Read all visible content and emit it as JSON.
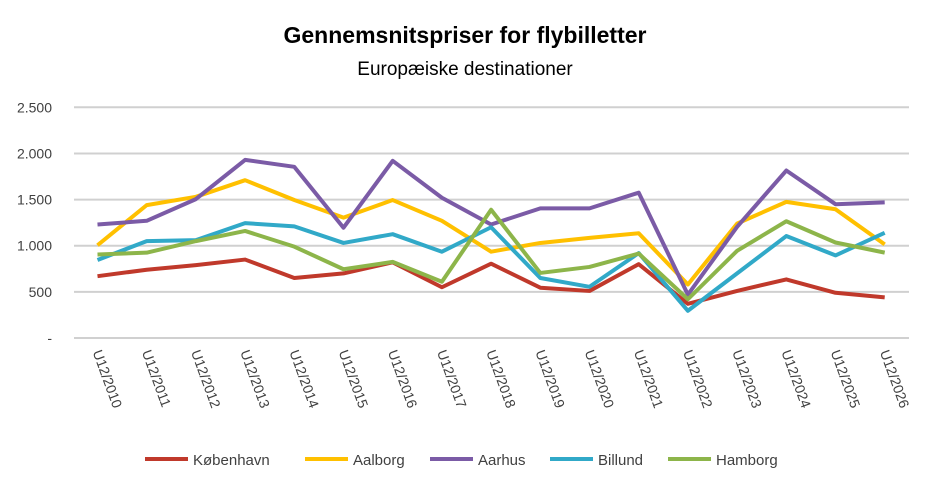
{
  "chart_data": {
    "type": "line",
    "title": "Gennemsnitspriser for flybilletter",
    "subtitle": "Europæiske destinationer",
    "xlabel": "",
    "ylabel": "",
    "ylim": [
      0,
      2500
    ],
    "y_ticks": [
      0,
      500,
      1000,
      1500,
      2000,
      2500
    ],
    "y_tick_labels": [
      "-",
      "500",
      "1.000",
      "1.500",
      "2.000",
      "2.500"
    ],
    "grid": true,
    "legend_position": "bottom",
    "categories": [
      "U12/2010",
      "U12/2011",
      "U12/2012",
      "U12/2013",
      "U12/2014",
      "U12/2015",
      "U12/2016",
      "U12/2017",
      "U12/2018",
      "U12/2019",
      "U12/2020",
      "U12/2021",
      "U12/2022",
      "U12/2023",
      "U12/2024",
      "U12/2025",
      "U12/2026"
    ],
    "series": [
      {
        "name": "København",
        "color": "#C0392B",
        "values": [
          670,
          740,
          790,
          850,
          650,
          700,
          820,
          550,
          805,
          545,
          510,
          800,
          370,
          510,
          635,
          490,
          440
        ]
      },
      {
        "name": "Aalborg",
        "color": "#FFC000",
        "values": [
          1005,
          1440,
          1530,
          1710,
          1495,
          1305,
          1495,
          1270,
          935,
          1030,
          1085,
          1135,
          580,
          1240,
          1475,
          1395,
          1015
        ]
      },
      {
        "name": "Aarhus",
        "color": "#7B5BA6",
        "values": [
          1230,
          1270,
          1505,
          1930,
          1855,
          1195,
          1920,
          1520,
          1230,
          1405,
          1405,
          1575,
          470,
          1205,
          1815,
          1450,
          1470
        ]
      },
      {
        "name": "Billund",
        "color": "#31A9C8",
        "values": [
          845,
          1050,
          1060,
          1245,
          1210,
          1030,
          1125,
          935,
          1200,
          650,
          555,
          920,
          295,
          700,
          1105,
          895,
          1140
        ]
      },
      {
        "name": "Hamborg",
        "color": "#8DB54A",
        "values": [
          905,
          925,
          1050,
          1160,
          990,
          745,
          825,
          610,
          1390,
          705,
          770,
          915,
          420,
          945,
          1265,
          1035,
          925
        ]
      }
    ]
  }
}
